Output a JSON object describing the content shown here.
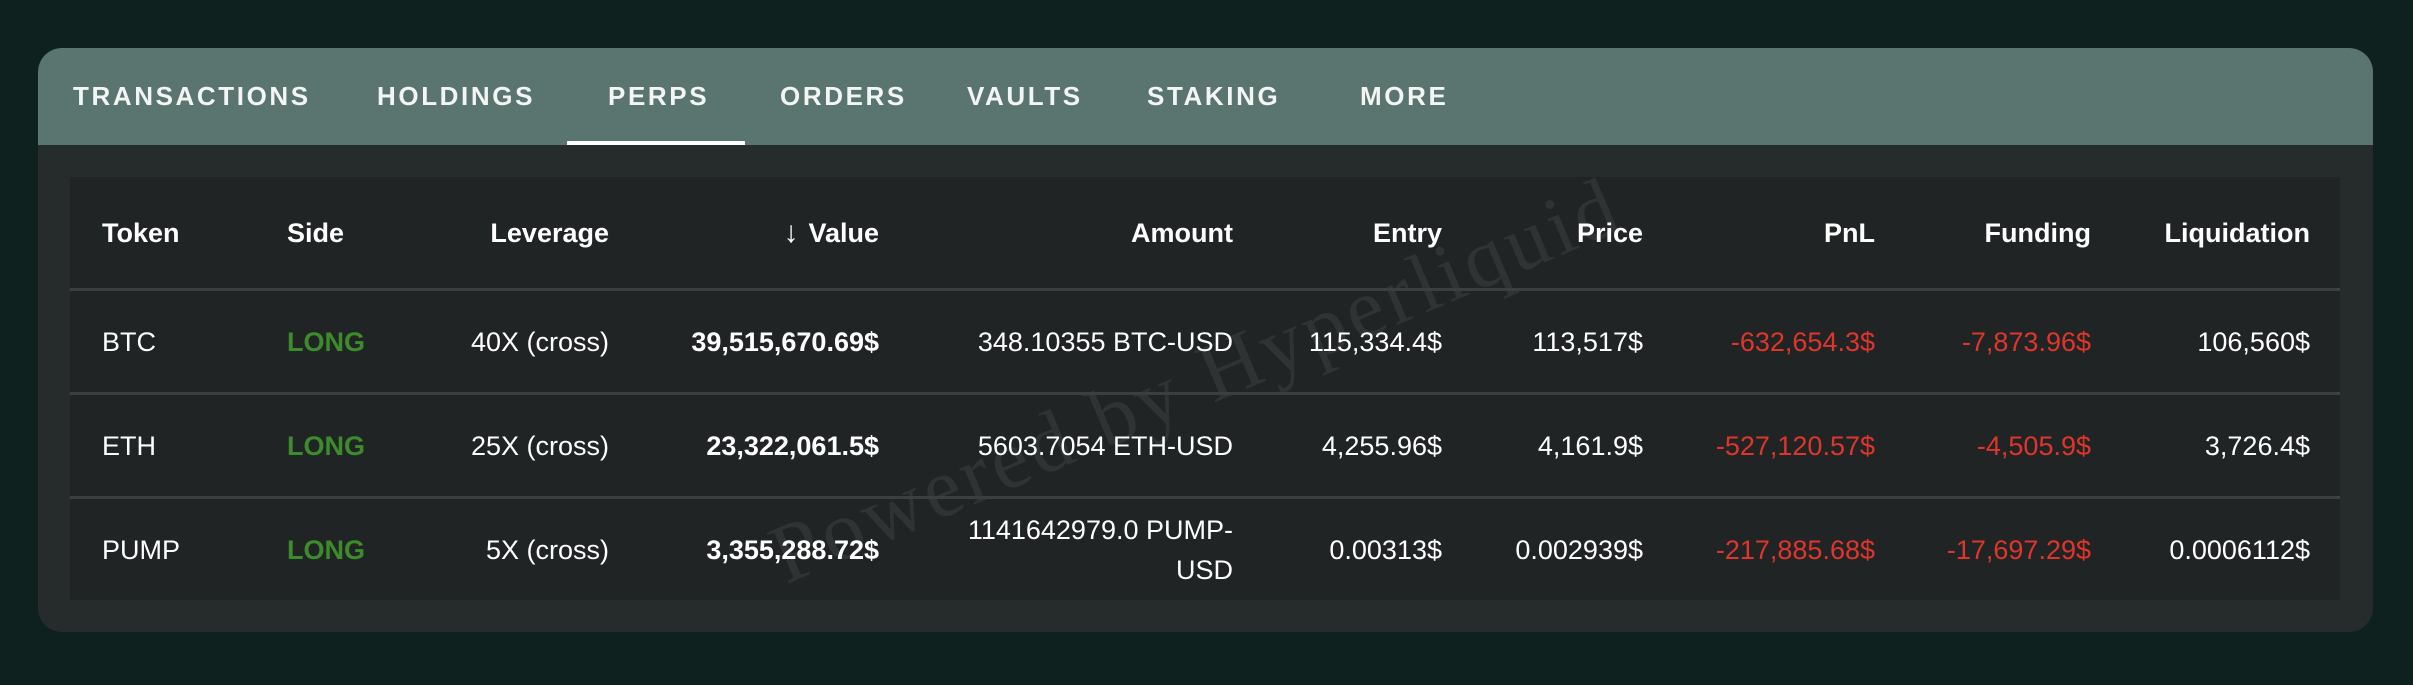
{
  "tabs": [
    {
      "label": "TRANSACTIONS",
      "active": false
    },
    {
      "label": "HOLDINGS",
      "active": false
    },
    {
      "label": "PERPS",
      "active": true
    },
    {
      "label": "ORDERS",
      "active": false
    },
    {
      "label": "VAULTS",
      "active": false
    },
    {
      "label": "STAKING",
      "active": false
    },
    {
      "label": "MORE",
      "active": false
    }
  ],
  "table": {
    "columns": [
      "Token",
      "Side",
      "Leverage",
      "Value",
      "Amount",
      "Entry",
      "Price",
      "PnL",
      "Funding",
      "Liquidation"
    ],
    "sort": {
      "column": "Value",
      "direction": "desc",
      "icon": "arrow-down-icon"
    },
    "rows": [
      {
        "token": "BTC",
        "side": "LONG",
        "leverage": "40X (cross)",
        "value": "39,515,670.69$",
        "amount": "348.10355 BTC-USD",
        "entry": "115,334.4$",
        "price": "113,517$",
        "pnl": "-632,654.3$",
        "funding": "-7,873.96$",
        "liquidation": "106,560$"
      },
      {
        "token": "ETH",
        "side": "LONG",
        "leverage": "25X (cross)",
        "value": "23,322,061.5$",
        "amount": "5603.7054 ETH-USD",
        "entry": "4,255.96$",
        "price": "4,161.9$",
        "pnl": "-527,120.57$",
        "funding": "-4,505.9$",
        "liquidation": "3,726.4$"
      },
      {
        "token": "PUMP",
        "side": "LONG",
        "leverage": "5X (cross)",
        "value": "3,355,288.72$",
        "amount": "1141642979.0 PUMP-USD",
        "entry": "0.00313$",
        "price": "0.002939$",
        "pnl": "-217,885.68$",
        "funding": "-17,697.29$",
        "liquidation": "0.0006112$"
      }
    ]
  },
  "watermark": "Powered by Hyperliquid",
  "colors": {
    "background": "#0e211f",
    "tab_bar": "#5a746f",
    "card": "#262b2b",
    "table": "#202425",
    "long": "#3d8c2c",
    "negative": "#e0352b"
  }
}
